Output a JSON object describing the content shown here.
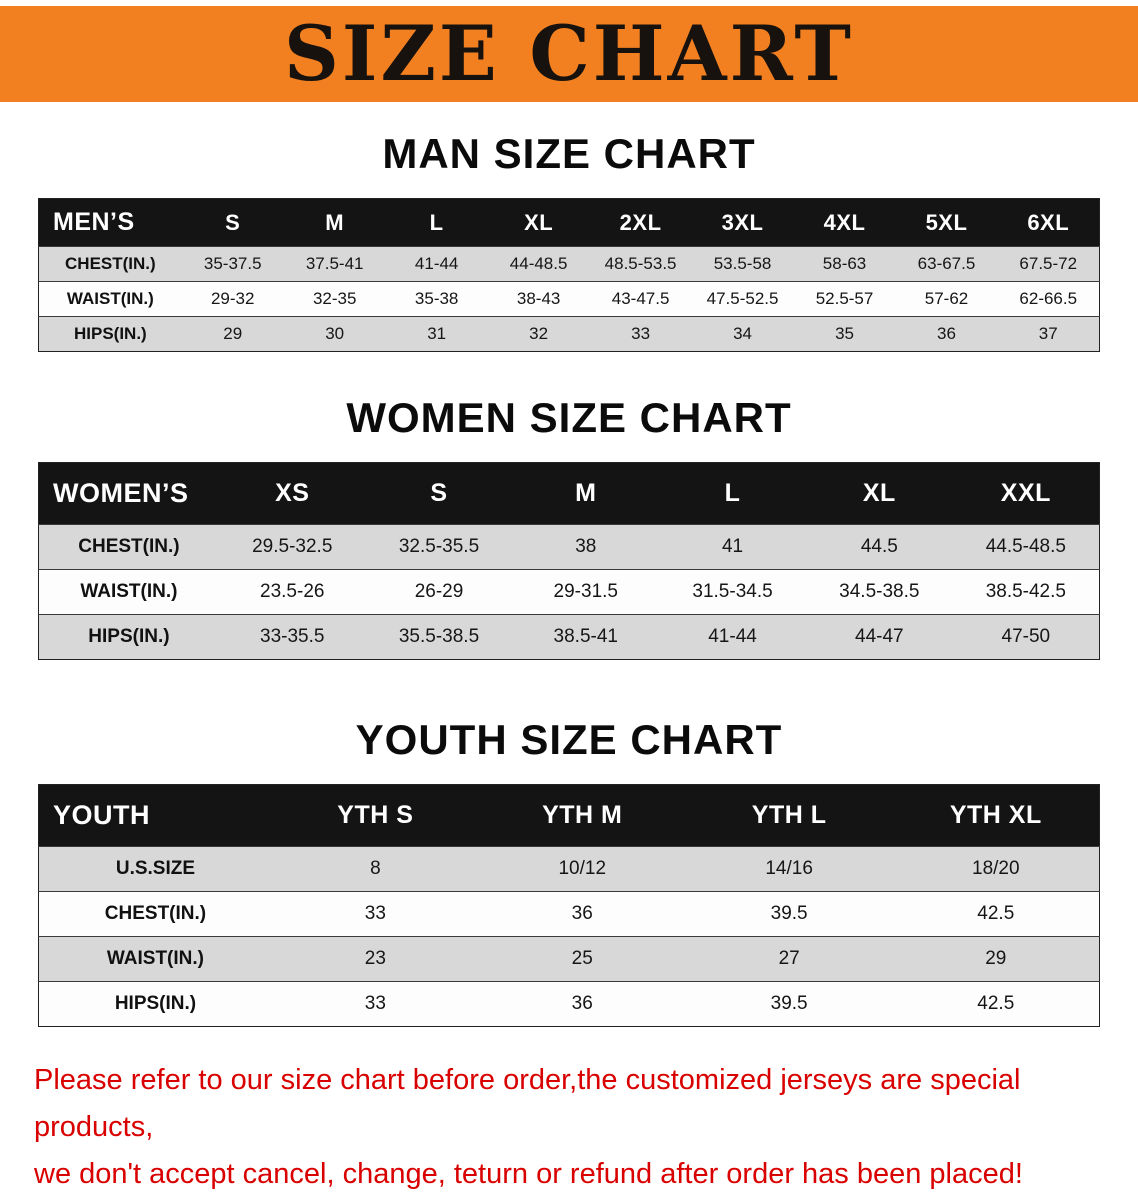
{
  "banner": {
    "title": "SIZE CHART"
  },
  "colors": {
    "banner_bg": "#f28021",
    "table_header_bg": "#141414",
    "row_stripe": "#d8d8d8",
    "disclaimer_red": "#d90000"
  },
  "sections": [
    {
      "heading": "MAN SIZE CHART",
      "header_label": "MEN’S",
      "columns": [
        "S",
        "M",
        "L",
        "XL",
        "2XL",
        "3XL",
        "4XL",
        "5XL",
        "6XL"
      ],
      "rows": [
        {
          "label": "CHEST(IN.)",
          "values": [
            "35-37.5",
            "37.5-41",
            "41-44",
            "44-48.5",
            "48.5-53.5",
            "53.5-58",
            "58-63",
            "63-67.5",
            "67.5-72"
          ]
        },
        {
          "label": "WAIST(IN.)",
          "values": [
            "29-32",
            "32-35",
            "35-38",
            "38-43",
            "43-47.5",
            "47.5-52.5",
            "52.5-57",
            "57-62",
            "62-66.5"
          ]
        },
        {
          "label": "HIPS(IN.)",
          "values": [
            "29",
            "30",
            "31",
            "32",
            "33",
            "34",
            "35",
            "36",
            "37"
          ]
        }
      ]
    },
    {
      "heading": "WOMEN SIZE CHART",
      "header_label": "WOMEN’S",
      "columns": [
        "XS",
        "S",
        "M",
        "L",
        "XL",
        "XXL"
      ],
      "rows": [
        {
          "label": "CHEST(IN.)",
          "values": [
            "29.5-32.5",
            "32.5-35.5",
            "38",
            "41",
            "44.5",
            "44.5-48.5"
          ]
        },
        {
          "label": "WAIST(IN.)",
          "values": [
            "23.5-26",
            "26-29",
            "29-31.5",
            "31.5-34.5",
            "34.5-38.5",
            "38.5-42.5"
          ]
        },
        {
          "label": "HIPS(IN.)",
          "values": [
            "33-35.5",
            "35.5-38.5",
            "38.5-41",
            "41-44",
            "44-47",
            "47-50"
          ]
        }
      ]
    },
    {
      "heading": "YOUTH SIZE CHART",
      "header_label": "YOUTH",
      "columns": [
        "YTH S",
        "YTH M",
        "YTH L",
        "YTH XL"
      ],
      "rows": [
        {
          "label": "U.S.SIZE",
          "values": [
            "8",
            "10/12",
            "14/16",
            "18/20"
          ]
        },
        {
          "label": "CHEST(IN.)",
          "values": [
            "33",
            "36",
            "39.5",
            "42.5"
          ]
        },
        {
          "label": "WAIST(IN.)",
          "values": [
            "23",
            "25",
            "27",
            "29"
          ]
        },
        {
          "label": "HIPS(IN.)",
          "values": [
            "33",
            "36",
            "39.5",
            "42.5"
          ]
        }
      ]
    }
  ],
  "footer": {
    "lines": [
      "Please refer to our size chart before order,the customized jerseys are special products,",
      "we don't accept cancel, change, teturn or refund after order has been placed!"
    ]
  }
}
